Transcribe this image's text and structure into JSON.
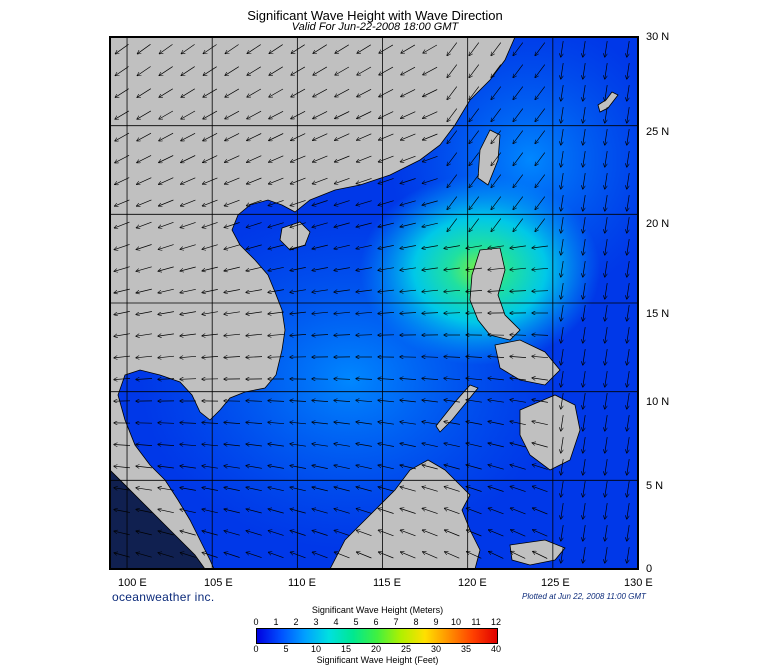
{
  "header": {
    "title": "Significant Wave Height with Wave Direction",
    "subtitle": "Valid For Jun-22-2008 18:00 GMT"
  },
  "map": {
    "lon_range": [
      99,
      130
    ],
    "lat_range": [
      0,
      30
    ],
    "lat_labels": [
      "30 N",
      "25 N",
      "20 N",
      "15 N",
      "10 N",
      "5 N",
      "0"
    ],
    "lon_labels": [
      "100 E",
      "105 E",
      "110 E",
      "115 E",
      "120 E",
      "125 E",
      "130 E"
    ],
    "land_color": "#c0c0c0",
    "gridlines": true,
    "peak_wave_center": {
      "lon": 119,
      "lat": 17.5
    }
  },
  "footer": {
    "brand": "oceanweather inc.",
    "plotted": "Plotted at Jun 22, 2008 11:00 GMT"
  },
  "legend": {
    "meters_title": "Significant Wave Height (Meters)",
    "feet_title": "Significant Wave Height (Feet)",
    "meters_ticks": [
      "0",
      "1",
      "2",
      "3",
      "4",
      "5",
      "6",
      "7",
      "8",
      "9",
      "10",
      "11",
      "12"
    ],
    "feet_ticks": [
      "0",
      "5",
      "10",
      "15",
      "20",
      "25",
      "30",
      "35",
      "40"
    ],
    "colors": [
      "#0000e0",
      "#0050ff",
      "#00a0ff",
      "#00e0e0",
      "#00e890",
      "#40f040",
      "#b0f000",
      "#ffe000",
      "#ff9000",
      "#ff4000",
      "#e00000"
    ]
  }
}
